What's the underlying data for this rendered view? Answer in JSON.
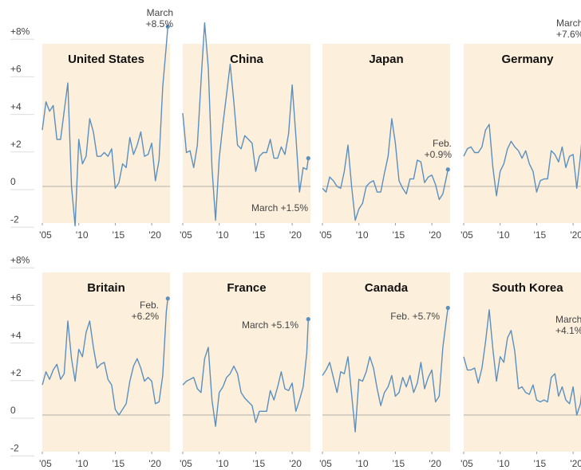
{
  "chart_data": [
    {
      "type": "line",
      "title": "United States",
      "color": "#5b8fbf",
      "annotation": [
        "March",
        "+8.5%"
      ],
      "x": [
        2005,
        2005.5,
        2006,
        2006.5,
        2007,
        2007.5,
        2008,
        2008.5,
        2009,
        2009.5,
        2010,
        2010.5,
        2011,
        2011.5,
        2012,
        2012.5,
        2013,
        2013.5,
        2014,
        2014.5,
        2015,
        2015.5,
        2016,
        2016.5,
        2017,
        2017.5,
        2018,
        2018.5,
        2019,
        2019.5,
        2020,
        2020.5,
        2021,
        2021.5,
        2022,
        2022.2
      ],
      "values": [
        3,
        4.5,
        4,
        4.3,
        2.5,
        2.5,
        4,
        5.5,
        0,
        -2.1,
        2.5,
        1.2,
        1.6,
        3.6,
        2.9,
        1.6,
        1.6,
        1.8,
        1.6,
        2,
        -0.1,
        0.2,
        1.2,
        1,
        2.6,
        1.7,
        2.2,
        2.9,
        1.6,
        1.7,
        2.3,
        0.3,
        1.4,
        5.3,
        7.5,
        8.5
      ],
      "xlim": [
        2005,
        2022.5
      ],
      "ylim": [
        -2.5,
        9
      ],
      "xticks": [
        {
          "value": 2005,
          "label": "'05"
        },
        {
          "value": 2010,
          "label": "'10"
        },
        {
          "value": 2015,
          "label": "'15"
        },
        {
          "value": 2020,
          "label": "'20"
        }
      ],
      "yticks": [
        {
          "value": 8,
          "label": "+8%"
        },
        {
          "value": 6,
          "label": "+6"
        },
        {
          "value": 4,
          "label": "+4"
        },
        {
          "value": 2,
          "label": "+2"
        },
        0,
        -2
      ]
    },
    {
      "type": "line",
      "title": "China",
      "color": "#5b8fbf",
      "annotation": [
        "March +1.5%"
      ],
      "x": [
        2005,
        2005.5,
        2006,
        2006.5,
        2007,
        2007.5,
        2008,
        2008.5,
        2009,
        2009.5,
        2010,
        2010.5,
        2011,
        2011.5,
        2012,
        2012.5,
        2013,
        2013.5,
        2014,
        2014.5,
        2015,
        2015.5,
        2016,
        2016.5,
        2017,
        2017.5,
        2018,
        2018.5,
        2019,
        2019.5,
        2020,
        2020.5,
        2021,
        2021.5,
        2022,
        2022.2
      ],
      "values": [
        3.9,
        1.8,
        1.9,
        1,
        2.2,
        5.6,
        8.7,
        6.3,
        1,
        -1.8,
        1.5,
        3.3,
        4.9,
        6.5,
        4.5,
        2.2,
        2,
        2.7,
        2.5,
        2.3,
        0.8,
        1.6,
        1.8,
        1.8,
        2.5,
        1.5,
        1.5,
        2.1,
        1.7,
        2.8,
        5.4,
        2.7,
        -0.3,
        1,
        0.9,
        1.5
      ],
      "xlim": [
        2005,
        2022.5
      ],
      "ylim": [
        -2.5,
        9
      ],
      "xticks": [
        {
          "value": 2005,
          "label": "'05"
        },
        {
          "value": 2010,
          "label": "'10"
        },
        {
          "value": 2015,
          "label": "'15"
        },
        {
          "value": 2020,
          "label": "'20"
        }
      ]
    },
    {
      "type": "line",
      "title": "Japan",
      "color": "#5b8fbf",
      "annotation": [
        "Feb.",
        "+0.9%"
      ],
      "x": [
        2005,
        2005.5,
        2006,
        2006.5,
        2007,
        2007.5,
        2008,
        2008.5,
        2009,
        2009.5,
        2010,
        2010.5,
        2011,
        2011.5,
        2012,
        2012.5,
        2013,
        2013.5,
        2014,
        2014.5,
        2015,
        2015.5,
        2016,
        2016.5,
        2017,
        2017.5,
        2018,
        2018.5,
        2019,
        2019.5,
        2020,
        2020.5,
        2021,
        2021.5,
        2022,
        2022.2
      ],
      "values": [
        -0.1,
        -0.3,
        0.5,
        0.3,
        0,
        -0.1,
        0.8,
        2.2,
        0,
        -1.8,
        -1.2,
        -0.9,
        0,
        0.2,
        0.3,
        -0.3,
        -0.3,
        0.7,
        1.6,
        3.6,
        2.3,
        0.3,
        -0.1,
        -0.4,
        0.4,
        0.4,
        1.4,
        1.3,
        0.2,
        0.5,
        0.6,
        0.1,
        -0.7,
        -0.4,
        0.5,
        0.9
      ],
      "xlim": [
        2005,
        2022.5
      ],
      "ylim": [
        -2.5,
        9
      ],
      "xticks": [
        {
          "value": 2005,
          "label": "'05"
        },
        {
          "value": 2010,
          "label": "'10"
        },
        {
          "value": 2015,
          "label": "'15"
        },
        {
          "value": 2020,
          "label": "'20"
        }
      ]
    },
    {
      "type": "line",
      "title": "Germany",
      "color": "#5b8fbf",
      "annotation": [
        "March",
        "+7.6%"
      ],
      "x": [
        2005,
        2005.5,
        2006,
        2006.5,
        2007,
        2007.5,
        2008,
        2008.5,
        2009,
        2009.5,
        2010,
        2010.5,
        2011,
        2011.5,
        2012,
        2012.5,
        2013,
        2013.5,
        2014,
        2014.5,
        2015,
        2015.5,
        2016,
        2016.5,
        2017,
        2017.5,
        2018,
        2018.5,
        2019,
        2019.5,
        2020,
        2020.5,
        2021,
        2021.5,
        2022,
        2022.2
      ],
      "values": [
        1.6,
        2,
        2.1,
        1.8,
        1.8,
        2.1,
        3,
        3.3,
        1,
        -0.5,
        0.8,
        1.2,
        2,
        2.4,
        2.1,
        1.9,
        1.5,
        1.9,
        1.2,
        0.8,
        -0.3,
        0.3,
        0.4,
        0.4,
        1.9,
        1.7,
        1.3,
        2.1,
        1,
        1.6,
        1.7,
        -0.1,
        1.6,
        3.8,
        5.1,
        7.6
      ],
      "xlim": [
        2005,
        2022.5
      ],
      "ylim": [
        -2.5,
        9
      ],
      "xticks": [
        {
          "value": 2005,
          "label": "'05"
        },
        {
          "value": 2010,
          "label": "'10"
        },
        {
          "value": 2015,
          "label": "'15"
        },
        {
          "value": 2020,
          "label": "'20"
        }
      ]
    },
    {
      "type": "line",
      "title": "Britain",
      "color": "#5b8fbf",
      "annotation": [
        "Feb.",
        "+6.2%"
      ],
      "x": [
        2005,
        2005.5,
        2006,
        2006.5,
        2007,
        2007.5,
        2008,
        2008.5,
        2009,
        2009.5,
        2010,
        2010.5,
        2011,
        2011.5,
        2012,
        2012.5,
        2013,
        2013.5,
        2014,
        2014.5,
        2015,
        2015.5,
        2016,
        2016.5,
        2017,
        2017.5,
        2018,
        2018.5,
        2019,
        2019.5,
        2020,
        2020.5,
        2021,
        2021.5,
        2022,
        2022.2
      ],
      "values": [
        1.6,
        2.3,
        1.9,
        2.4,
        2.7,
        1.9,
        2.2,
        5,
        3,
        1.8,
        3.5,
        3.1,
        4.4,
        5,
        3.6,
        2.5,
        2.7,
        2.8,
        1.9,
        1.6,
        0.3,
        0,
        0.3,
        0.6,
        1.8,
        2.6,
        3,
        2.5,
        1.8,
        2,
        1.8,
        0.6,
        0.7,
        2.1,
        5.5,
        6.2
      ],
      "xlim": [
        2005,
        2022.5
      ],
      "ylim": [
        -2.5,
        9
      ],
      "xticks": [
        {
          "value": 2005,
          "label": "'05"
        },
        {
          "value": 2010,
          "label": "'10"
        },
        {
          "value": 2015,
          "label": "'15"
        },
        {
          "value": 2020,
          "label": "'20"
        }
      ],
      "yticks": [
        {
          "value": 8,
          "label": "+8%"
        },
        {
          "value": 6,
          "label": "+6"
        },
        {
          "value": 4,
          "label": "+4"
        },
        {
          "value": 2,
          "label": "+2"
        },
        0,
        -2
      ]
    },
    {
      "type": "line",
      "title": "France",
      "color": "#5b8fbf",
      "annotation": [
        "March +5.1%"
      ],
      "x": [
        2005,
        2005.5,
        2006,
        2006.5,
        2007,
        2007.5,
        2008,
        2008.5,
        2009,
        2009.5,
        2010,
        2010.5,
        2011,
        2011.5,
        2012,
        2012.5,
        2013,
        2013.5,
        2014,
        2014.5,
        2015,
        2015.5,
        2016,
        2016.5,
        2017,
        2017.5,
        2018,
        2018.5,
        2019,
        2019.5,
        2020,
        2020.5,
        2021,
        2021.5,
        2022,
        2022.2
      ],
      "values": [
        1.6,
        1.8,
        1.9,
        2,
        1.4,
        1.2,
        3,
        3.6,
        0.8,
        -0.6,
        1.2,
        1.5,
        2,
        2.2,
        2.6,
        2.2,
        1.2,
        0.9,
        0.7,
        0.5,
        -0.4,
        0.2,
        0.2,
        0.2,
        1.3,
        0.8,
        1.5,
        2.3,
        1.4,
        1.3,
        1.7,
        0.2,
        0.8,
        1.5,
        3.3,
        5.1
      ],
      "xlim": [
        2005,
        2022.5
      ],
      "ylim": [
        -2.5,
        9
      ],
      "xticks": [
        {
          "value": 2005,
          "label": "'05"
        },
        {
          "value": 2010,
          "label": "'10"
        },
        {
          "value": 2015,
          "label": "'15"
        },
        {
          "value": 2020,
          "label": "'20"
        }
      ]
    },
    {
      "type": "line",
      "title": "Canada",
      "color": "#5b8fbf",
      "annotation": [
        "Feb. +5.7%"
      ],
      "x": [
        2005,
        2005.5,
        2006,
        2006.5,
        2007,
        2007.5,
        2008,
        2008.5,
        2009,
        2009.5,
        2010,
        2010.5,
        2011,
        2011.5,
        2012,
        2012.5,
        2013,
        2013.5,
        2014,
        2014.5,
        2015,
        2015.5,
        2016,
        2016.5,
        2017,
        2017.5,
        2018,
        2018.5,
        2019,
        2019.5,
        2020,
        2020.5,
        2021,
        2021.5,
        2022,
        2022.2
      ],
      "values": [
        2.1,
        2.4,
        2.8,
        2,
        1.2,
        2.3,
        2.2,
        3.1,
        1.1,
        -0.9,
        1.9,
        1.8,
        2.3,
        3.1,
        2.5,
        1.4,
        0.5,
        1.2,
        1.5,
        2.1,
        1,
        1.2,
        2,
        1.5,
        2.1,
        1.2,
        1.7,
        2.8,
        1.4,
        2,
        2.4,
        0.7,
        1,
        3.6,
        5.1,
        5.7
      ],
      "xlim": [
        2005,
        2022.5
      ],
      "ylim": [
        -2.5,
        9
      ],
      "xticks": [
        {
          "value": 2005,
          "label": "'05"
        },
        {
          "value": 2010,
          "label": "'10"
        },
        {
          "value": 2015,
          "label": "'15"
        },
        {
          "value": 2020,
          "label": "'20"
        }
      ]
    },
    {
      "type": "line",
      "title": "South Korea",
      "color": "#5b8fbf",
      "annotation": [
        "March",
        "+4.1%"
      ],
      "x": [
        2005,
        2005.5,
        2006,
        2006.5,
        2007,
        2007.5,
        2008,
        2008.5,
        2009,
        2009.5,
        2010,
        2010.5,
        2011,
        2011.5,
        2012,
        2012.5,
        2013,
        2013.5,
        2014,
        2014.5,
        2015,
        2015.5,
        2016,
        2016.5,
        2017,
        2017.5,
        2018,
        2018.5,
        2019,
        2019.5,
        2020,
        2020.5,
        2021,
        2021.5,
        2022,
        2022.2
      ],
      "values": [
        3.1,
        2.4,
        2.4,
        2.5,
        1.7,
        2.5,
        3.9,
        5.6,
        3.5,
        1.8,
        3.1,
        2.8,
        4.1,
        4.5,
        3.4,
        1.4,
        1.5,
        1.2,
        1.1,
        1.6,
        0.8,
        0.7,
        0.8,
        0.7,
        2,
        2.2,
        1,
        1.5,
        0.8,
        0.6,
        1.5,
        0,
        0.6,
        2.4,
        3.6,
        4.1
      ],
      "xlim": [
        2005,
        2022.5
      ],
      "ylim": [
        -2.5,
        9
      ],
      "xticks": [
        {
          "value": 2005,
          "label": "'05"
        },
        {
          "value": 2010,
          "label": "'10"
        },
        {
          "value": 2015,
          "label": "'15"
        },
        {
          "value": 2020,
          "label": "'20"
        }
      ]
    }
  ]
}
